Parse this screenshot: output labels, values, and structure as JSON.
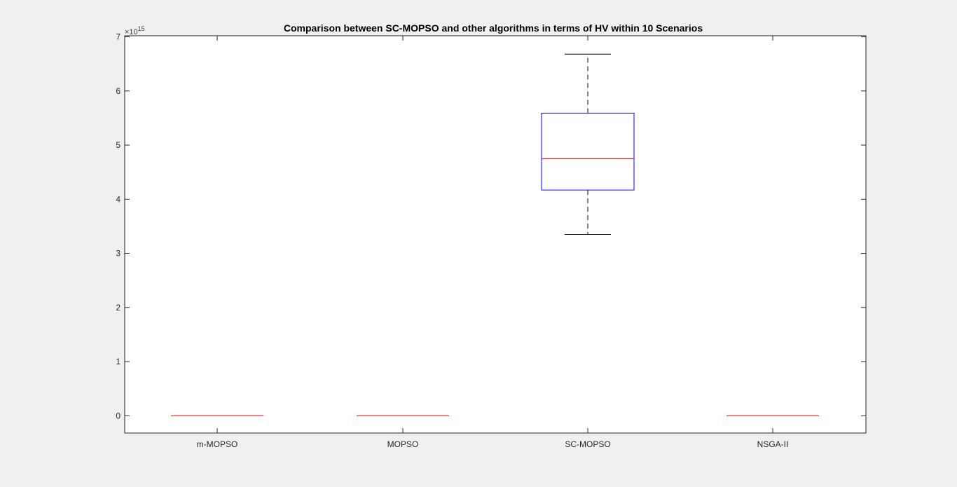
{
  "chart_data": {
    "type": "box",
    "title": "Comparison between SC-MOPSO and other algorithms in terms of HV within 10 Scenarios",
    "xlabel": "",
    "ylabel": "",
    "y_exponent_label": "×10",
    "y_exponent": "15",
    "ylim": [
      -0.32,
      7.02
    ],
    "yticks": [
      0,
      1,
      2,
      3,
      4,
      5,
      6,
      7
    ],
    "ytick_labels": [
      "0",
      "1",
      "2",
      "3",
      "4",
      "5",
      "6",
      "7"
    ],
    "categories": [
      "m-MOPSO",
      "MOPSO",
      "SC-MOPSO",
      "NSGA-II"
    ],
    "boxes": [
      {
        "category": "m-MOPSO",
        "min": 0,
        "q1": 0,
        "median": 0,
        "q3": 0,
        "max": 0
      },
      {
        "category": "MOPSO",
        "min": 0,
        "q1": 0,
        "median": 0,
        "q3": 0,
        "max": 0
      },
      {
        "category": "SC-MOPSO",
        "min": 3.35,
        "q1": 4.17,
        "median": 4.75,
        "q3": 5.59,
        "max": 6.68
      },
      {
        "category": "NSGA-II",
        "min": 0,
        "q1": 0,
        "median": 0,
        "q3": 0,
        "max": 0
      }
    ],
    "colors": {
      "box": "#0000ff",
      "median": "#ff0000",
      "whisker": "#000000"
    },
    "grid": false
  }
}
